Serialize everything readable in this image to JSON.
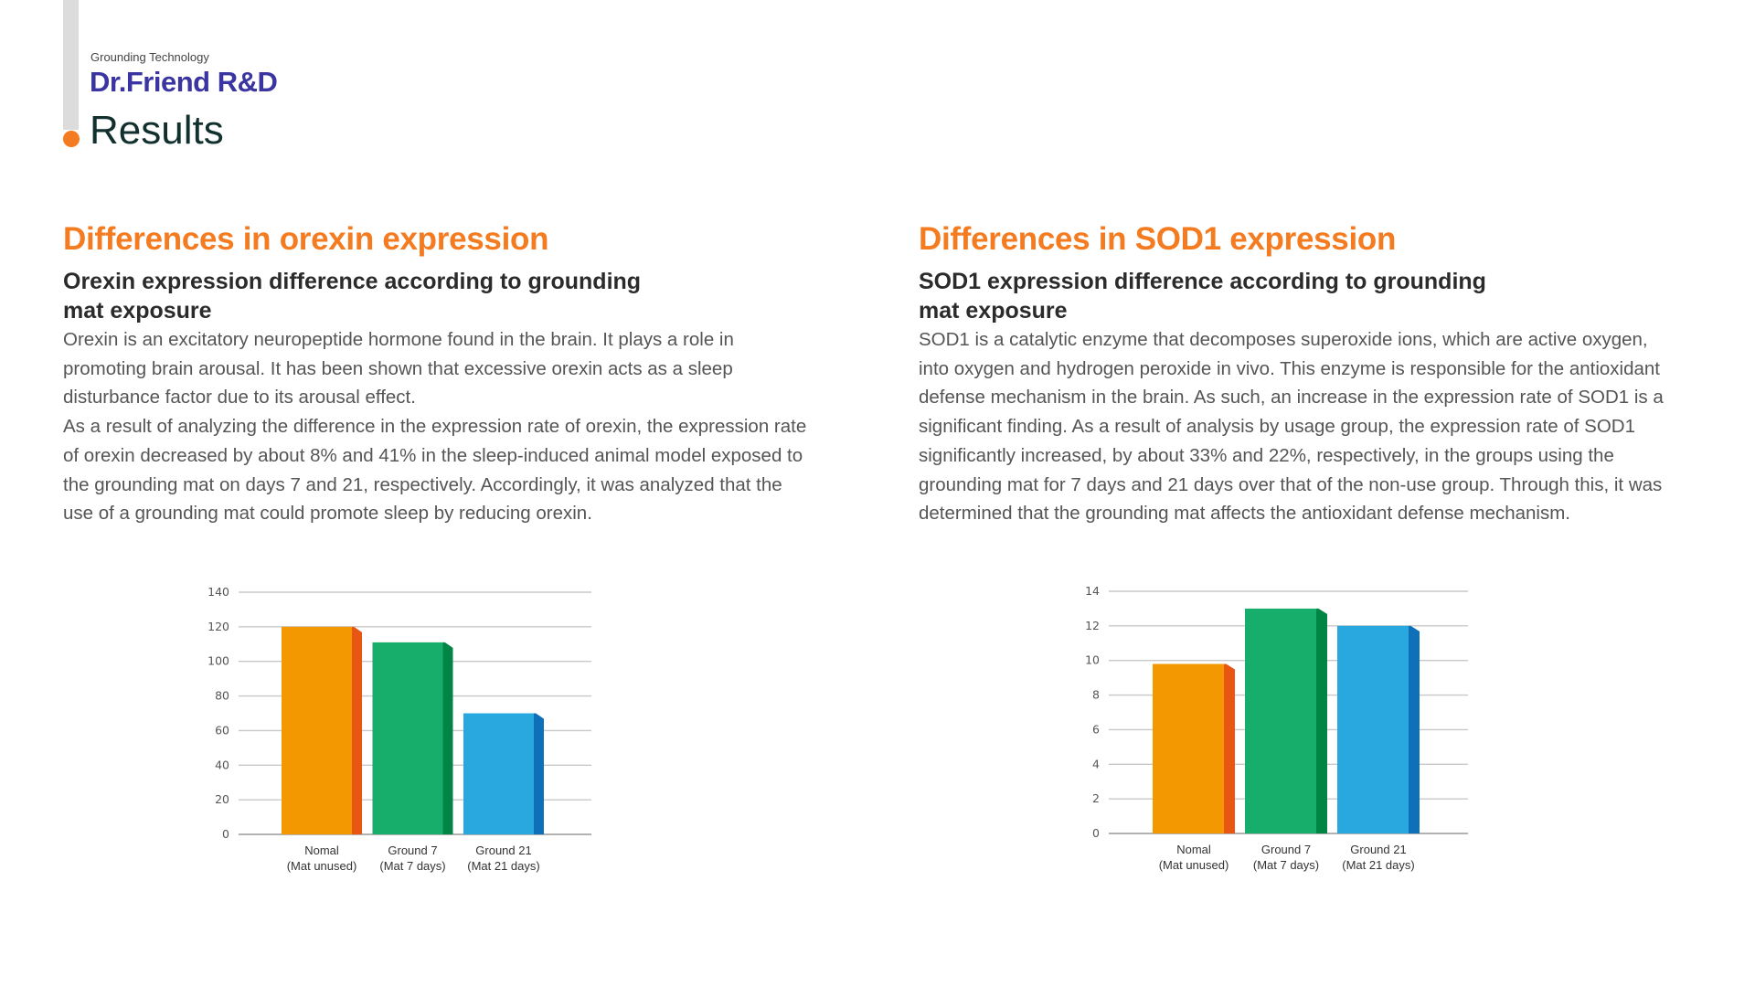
{
  "header": {
    "kicker": "Grounding Technology",
    "brand": "Dr.Friend R&D",
    "title": "Results",
    "accent_color": "#f47b20",
    "brand_color": "#3a35a0"
  },
  "sections": [
    {
      "title": "Differences in orexin expression",
      "subtitle": "Orexin expression difference according to grounding mat exposure",
      "paragraphs": [
        "Orexin is an excitatory neuropeptide hormone found in the brain. It plays a role in promoting brain arousal. It has been shown that excessive orexin acts as a sleep disturbance factor due to its arousal effect.",
        "As a result of analyzing the difference in the expression rate of orexin, the expression rate of orexin decreased by about 8% and 41% in the sleep-induced animal model exposed to the grounding mat on days 7 and 21, respectively. Accordingly, it was analyzed that the use of a grounding mat could promote sleep by reducing orexin."
      ]
    },
    {
      "title": "Differences in SOD1 expression",
      "subtitle": "SOD1 expression difference according to grounding mat exposure",
      "paragraphs": [
        "SOD1 is a catalytic enzyme that decomposes superoxide ions, which are active oxygen, into oxygen and hydrogen peroxide in vivo. This enzyme is responsible for the antioxidant defense mechanism in the brain. As such, an increase in the expression rate of SOD1 is a significant finding. As a result of analysis by usage group, the expression rate of SOD1 significantly increased, by about 33% and 22%, respectively, in the groups using the grounding mat for 7 days and 21 days over that of the non-use group. Through this, it was determined that the grounding mat affects the antioxidant defense mechanism."
      ]
    }
  ],
  "chart_data": [
    {
      "type": "bar",
      "title": "",
      "xlabel": "",
      "ylabel": "",
      "categories": [
        [
          "Nomal",
          "(Mat unused)"
        ],
        [
          "Ground 7",
          "(Mat 7 days)"
        ],
        [
          "Ground 21",
          "(Mat 21 days)"
        ]
      ],
      "values": [
        120,
        111,
        70
      ],
      "ylim": [
        0,
        140
      ],
      "yticks": [
        0,
        20,
        40,
        60,
        80,
        100,
        120,
        140
      ],
      "grid": true,
      "legend": "none",
      "colors": [
        {
          "front": "#f39800",
          "side": "#e95513"
        },
        {
          "front": "#16ae6a",
          "side": "#008544"
        },
        {
          "front": "#29a8e0",
          "side": "#0f6fb8"
        }
      ]
    },
    {
      "type": "bar",
      "title": "",
      "xlabel": "",
      "ylabel": "",
      "categories": [
        [
          "Nomal",
          "(Mat unused)"
        ],
        [
          "Ground 7",
          "(Mat 7 days)"
        ],
        [
          "Ground 21",
          "(Mat 21 days)"
        ]
      ],
      "values": [
        9.8,
        13,
        12
      ],
      "ylim": [
        0,
        14
      ],
      "yticks": [
        0,
        2,
        4,
        6,
        8,
        10,
        12,
        14
      ],
      "grid": true,
      "legend": "none",
      "colors": [
        {
          "front": "#f39800",
          "side": "#e95513"
        },
        {
          "front": "#16ae6a",
          "side": "#008544"
        },
        {
          "front": "#29a8e0",
          "side": "#0f6fb8"
        }
      ]
    }
  ]
}
